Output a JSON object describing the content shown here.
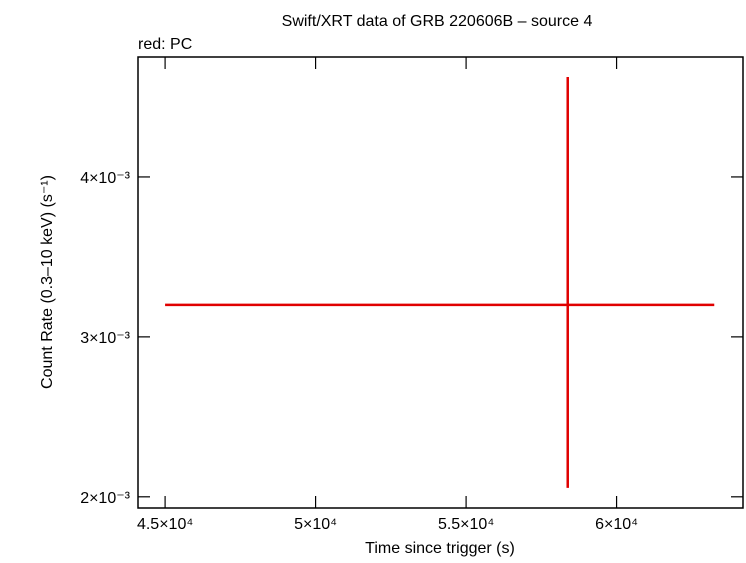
{
  "chart_data": {
    "type": "errorbar",
    "title": "Swift/XRT data of GRB 220606B – source 4",
    "subtitle": "red: PC",
    "xlabel": "Time since trigger (s)",
    "ylabel": "Count Rate (0.3–10 keV) (s⁻¹)",
    "xlim": [
      44100,
      64200
    ],
    "ylim": [
      0.00193,
      0.00475
    ],
    "xticks": [
      {
        "value": 45000,
        "label": "4.5×10⁴"
      },
      {
        "value": 50000,
        "label": "5×10⁴"
      },
      {
        "value": 55000,
        "label": "5.5×10⁴"
      },
      {
        "value": 60000,
        "label": "6×10⁴"
      }
    ],
    "yticks": [
      {
        "value": 0.002,
        "label": "2×10⁻³"
      },
      {
        "value": 0.003,
        "label": "3×10⁻³"
      },
      {
        "value": 0.004,
        "label": "4×10⁻³"
      }
    ],
    "series": [
      {
        "color": "#e00000",
        "x": [
          58377
        ],
        "values": [
          0.0032
        ],
        "xerr_minus": [
          13377
        ],
        "xerr_plus": [
          4868
        ],
        "yerr_minus": [
          0.001144
        ],
        "yerr_plus": [
          0.001425
        ]
      }
    ]
  }
}
